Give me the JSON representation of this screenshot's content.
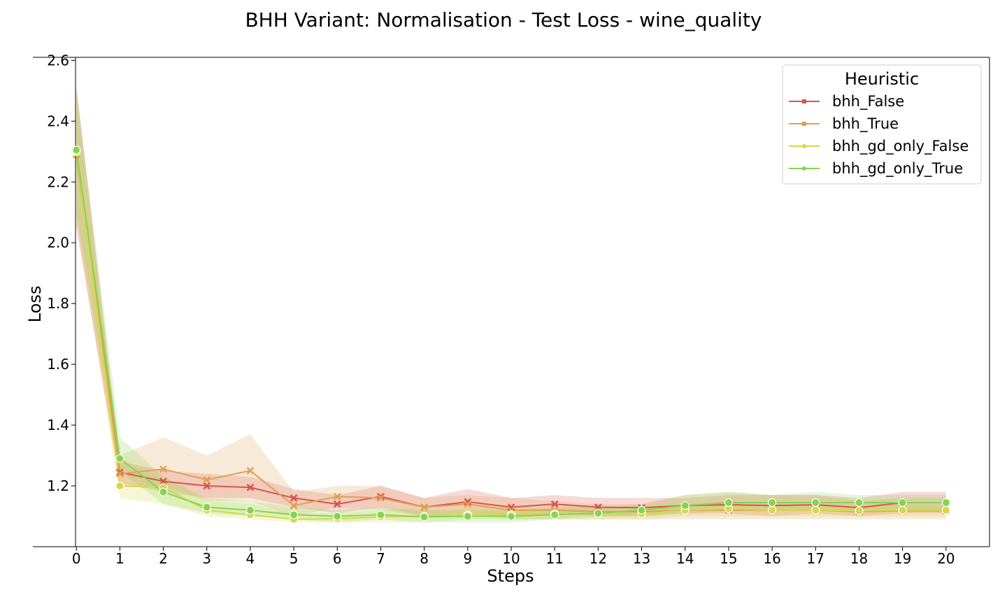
{
  "chart_data": {
    "type": "line",
    "title": "BHH Variant: Normalisation - Test Loss - wine_quality",
    "xlabel": "Steps",
    "ylabel": "Loss",
    "xlim": [
      -1,
      21
    ],
    "ylim": [
      1.0,
      2.61
    ],
    "x": [
      0,
      1,
      2,
      3,
      4,
      5,
      6,
      7,
      8,
      9,
      10,
      11,
      12,
      13,
      14,
      15,
      16,
      17,
      18,
      19,
      20
    ],
    "x_ticks": [
      "0",
      "1",
      "2",
      "3",
      "4",
      "5",
      "6",
      "7",
      "8",
      "9",
      "10",
      "11",
      "12",
      "13",
      "14",
      "15",
      "16",
      "17",
      "18",
      "19",
      "20"
    ],
    "y_ticks": [
      "1.2",
      "1.4",
      "1.6",
      "1.8",
      "2.0",
      "2.2",
      "2.4",
      "2.6"
    ],
    "grid": false,
    "legend": {
      "title": "Heuristic",
      "placement": "top-right"
    },
    "series": [
      {
        "name": "bhh_False",
        "color": "#d9534f",
        "marker": "x",
        "values": [
          2.29,
          1.245,
          1.215,
          1.2,
          1.195,
          1.16,
          1.14,
          1.165,
          1.13,
          1.148,
          1.13,
          1.14,
          1.13,
          1.128,
          1.135,
          1.138,
          1.135,
          1.138,
          1.128,
          1.145,
          1.145
        ],
        "lower": [
          2.05,
          1.21,
          1.18,
          1.16,
          1.16,
          1.13,
          1.11,
          1.13,
          1.1,
          1.11,
          1.1,
          1.11,
          1.1,
          1.1,
          1.11,
          1.11,
          1.1,
          1.11,
          1.1,
          1.11,
          1.11
        ],
        "upper": [
          2.52,
          1.28,
          1.25,
          1.24,
          1.23,
          1.19,
          1.17,
          1.2,
          1.16,
          1.19,
          1.16,
          1.17,
          1.16,
          1.16,
          1.16,
          1.17,
          1.17,
          1.17,
          1.16,
          1.18,
          1.18
        ]
      },
      {
        "name": "bhh_True",
        "color": "#e0a050",
        "marker": "x",
        "values": [
          2.29,
          1.24,
          1.255,
          1.22,
          1.25,
          1.135,
          1.165,
          1.16,
          1.13,
          1.14,
          1.12,
          1.12,
          1.115,
          1.115,
          1.12,
          1.12,
          1.12,
          1.12,
          1.115,
          1.118,
          1.118
        ],
        "lower": [
          2.06,
          1.2,
          1.2,
          1.15,
          1.15,
          1.1,
          1.13,
          1.12,
          1.1,
          1.11,
          1.09,
          1.09,
          1.09,
          1.09,
          1.09,
          1.09,
          1.09,
          1.09,
          1.09,
          1.09,
          1.09
        ],
        "upper": [
          2.51,
          1.3,
          1.36,
          1.3,
          1.37,
          1.18,
          1.2,
          1.2,
          1.16,
          1.17,
          1.16,
          1.15,
          1.14,
          1.14,
          1.17,
          1.18,
          1.17,
          1.17,
          1.15,
          1.16,
          1.16
        ]
      },
      {
        "name": "bhh_gd_only_False",
        "color": "#d4d84a",
        "marker": "o",
        "values": [
          2.3,
          1.2,
          1.195,
          1.12,
          1.105,
          1.09,
          1.092,
          1.098,
          1.1,
          1.105,
          1.105,
          1.108,
          1.11,
          1.108,
          1.12,
          1.125,
          1.12,
          1.12,
          1.118,
          1.12,
          1.12
        ],
        "lower": [
          2.1,
          1.16,
          1.14,
          1.1,
          1.09,
          1.08,
          1.08,
          1.08,
          1.08,
          1.09,
          1.09,
          1.09,
          1.09,
          1.09,
          1.1,
          1.1,
          1.1,
          1.1,
          1.1,
          1.1,
          1.1
        ],
        "upper": [
          2.45,
          1.28,
          1.23,
          1.15,
          1.14,
          1.11,
          1.11,
          1.12,
          1.12,
          1.13,
          1.13,
          1.13,
          1.13,
          1.13,
          1.14,
          1.15,
          1.14,
          1.14,
          1.14,
          1.14,
          1.14
        ]
      },
      {
        "name": "bhh_gd_only_True",
        "color": "#86d44e",
        "marker": "o",
        "values": [
          2.305,
          1.29,
          1.18,
          1.13,
          1.12,
          1.105,
          1.1,
          1.105,
          1.098,
          1.1,
          1.1,
          1.105,
          1.11,
          1.12,
          1.135,
          1.145,
          1.145,
          1.145,
          1.145,
          1.145,
          1.145
        ],
        "lower": [
          2.1,
          1.25,
          1.14,
          1.11,
          1.1,
          1.09,
          1.08,
          1.09,
          1.08,
          1.08,
          1.08,
          1.09,
          1.1,
          1.1,
          1.11,
          1.12,
          1.12,
          1.12,
          1.12,
          1.12,
          1.12
        ],
        "upper": [
          2.5,
          1.36,
          1.23,
          1.16,
          1.15,
          1.13,
          1.12,
          1.13,
          1.12,
          1.12,
          1.12,
          1.13,
          1.13,
          1.14,
          1.17,
          1.18,
          1.17,
          1.18,
          1.17,
          1.17,
          1.17
        ]
      }
    ]
  }
}
